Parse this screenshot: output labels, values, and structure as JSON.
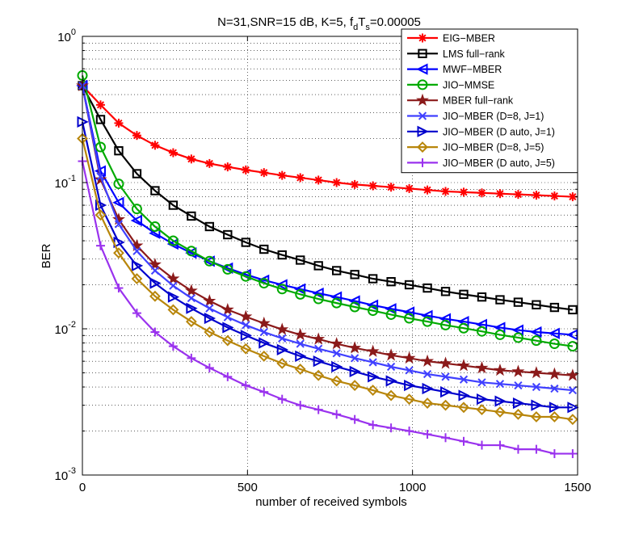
{
  "chart_data": {
    "type": "line",
    "title_main": "N=31,SNR=15 dB, K=5, f",
    "title_sub1": "d",
    "title_mid": "T",
    "title_sub2": "s",
    "title_end": "=0.00005",
    "xlabel": "number of received symbols",
    "ylabel": "BER",
    "x_scale": "linear",
    "y_scale": "log",
    "xlim": [
      0,
      1500
    ],
    "ylim": [
      0.001,
      1
    ],
    "x_ticks": [
      "0",
      "500",
      "1000",
      "1500"
    ],
    "y_ticks": [
      {
        "base": "10",
        "exp": "-3"
      },
      {
        "base": "10",
        "exp": "-2"
      },
      {
        "base": "10",
        "exp": "-1"
      },
      {
        "base": "10",
        "exp": "0"
      }
    ],
    "grid": true,
    "legend_position": "top-right",
    "x": [
      0,
      55,
      110,
      165,
      220,
      275,
      330,
      385,
      440,
      495,
      550,
      605,
      660,
      715,
      770,
      825,
      880,
      935,
      990,
      1045,
      1100,
      1155,
      1210,
      1265,
      1320,
      1375,
      1430,
      1485
    ],
    "series": [
      {
        "name": "EIG−MBER",
        "color": "#ff0000",
        "marker": "asterisk",
        "values": [
          0.46,
          0.34,
          0.255,
          0.21,
          0.18,
          0.16,
          0.145,
          0.135,
          0.128,
          0.122,
          0.117,
          0.112,
          0.108,
          0.104,
          0.1,
          0.097,
          0.095,
          0.093,
          0.091,
          0.089,
          0.087,
          0.086,
          0.085,
          0.084,
          0.083,
          0.082,
          0.081,
          0.08
        ]
      },
      {
        "name": "LMS full−rank",
        "color": "#000000",
        "marker": "square",
        "values": [
          0.46,
          0.27,
          0.165,
          0.115,
          0.088,
          0.07,
          0.059,
          0.05,
          0.044,
          0.039,
          0.035,
          0.032,
          0.0295,
          0.027,
          0.025,
          0.0235,
          0.022,
          0.021,
          0.02,
          0.019,
          0.018,
          0.0172,
          0.0165,
          0.0158,
          0.0152,
          0.0146,
          0.014,
          0.0135
        ]
      },
      {
        "name": "MWF−MBER",
        "color": "#0000ff",
        "marker": "triangle-left",
        "values": [
          0.46,
          0.12,
          0.073,
          0.055,
          0.045,
          0.038,
          0.033,
          0.029,
          0.026,
          0.0235,
          0.0215,
          0.02,
          0.0187,
          0.0175,
          0.0165,
          0.0155,
          0.0145,
          0.0137,
          0.013,
          0.0123,
          0.0117,
          0.0112,
          0.0107,
          0.0102,
          0.0098,
          0.0095,
          0.0093,
          0.0091
        ]
      },
      {
        "name": "JIO−MMSE",
        "color": "#00aa00",
        "marker": "circle",
        "values": [
          0.54,
          0.175,
          0.098,
          0.066,
          0.05,
          0.04,
          0.034,
          0.029,
          0.0255,
          0.0228,
          0.0205,
          0.0187,
          0.0172,
          0.016,
          0.015,
          0.0141,
          0.0133,
          0.0125,
          0.0118,
          0.0112,
          0.0106,
          0.0101,
          0.0096,
          0.0091,
          0.0087,
          0.0083,
          0.0079,
          0.0076
        ]
      },
      {
        "name": "MBER full−rank",
        "color": "#8b1a1a",
        "marker": "star",
        "values": [
          0.46,
          0.105,
          0.056,
          0.037,
          0.0275,
          0.022,
          0.0182,
          0.0155,
          0.0135,
          0.0121,
          0.0109,
          0.0099,
          0.0091,
          0.0085,
          0.0079,
          0.0074,
          0.007,
          0.0066,
          0.0063,
          0.006,
          0.0058,
          0.0056,
          0.0054,
          0.0052,
          0.0051,
          0.005,
          0.0049,
          0.0048
        ]
      },
      {
        "name": "JIO−MBER (D=8, J=1)",
        "color": "#4040ff",
        "marker": "cross",
        "values": [
          0.46,
          0.11,
          0.052,
          0.034,
          0.025,
          0.0197,
          0.0162,
          0.0138,
          0.012,
          0.0106,
          0.0095,
          0.0086,
          0.0079,
          0.0073,
          0.0068,
          0.0063,
          0.0059,
          0.0055,
          0.0052,
          0.0049,
          0.0047,
          0.0045,
          0.0043,
          0.0042,
          0.0041,
          0.004,
          0.0039,
          0.0038
        ]
      },
      {
        "name": "JIO−MBER (D auto, J=1)",
        "color": "#0000cc",
        "marker": "triangle-right",
        "values": [
          0.26,
          0.07,
          0.039,
          0.027,
          0.0205,
          0.0165,
          0.0138,
          0.0118,
          0.0102,
          0.009,
          0.008,
          0.0072,
          0.0065,
          0.006,
          0.0055,
          0.0051,
          0.0047,
          0.0044,
          0.0041,
          0.0039,
          0.0037,
          0.0035,
          0.0033,
          0.0032,
          0.0031,
          0.003,
          0.0029,
          0.0029
        ]
      },
      {
        "name": "JIO−MBER (D=8, J=5)",
        "color": "#b8860b",
        "marker": "diamond",
        "values": [
          0.2,
          0.06,
          0.033,
          0.022,
          0.0167,
          0.0135,
          0.0112,
          0.0095,
          0.0083,
          0.0073,
          0.0065,
          0.0058,
          0.0053,
          0.0048,
          0.0044,
          0.0041,
          0.0038,
          0.0035,
          0.0033,
          0.0031,
          0.003,
          0.0029,
          0.0028,
          0.0027,
          0.0026,
          0.0025,
          0.0025,
          0.0024
        ]
      },
      {
        "name": "JIO−MBER (D auto, J=5)",
        "color": "#9a32ee",
        "marker": "plus",
        "values": [
          0.14,
          0.037,
          0.019,
          0.0128,
          0.0095,
          0.0076,
          0.0063,
          0.0054,
          0.0047,
          0.0041,
          0.0037,
          0.0033,
          0.003,
          0.0028,
          0.0026,
          0.0024,
          0.0022,
          0.0021,
          0.002,
          0.0019,
          0.0018,
          0.0017,
          0.0016,
          0.0016,
          0.0015,
          0.0015,
          0.0014,
          0.0014
        ]
      }
    ]
  }
}
